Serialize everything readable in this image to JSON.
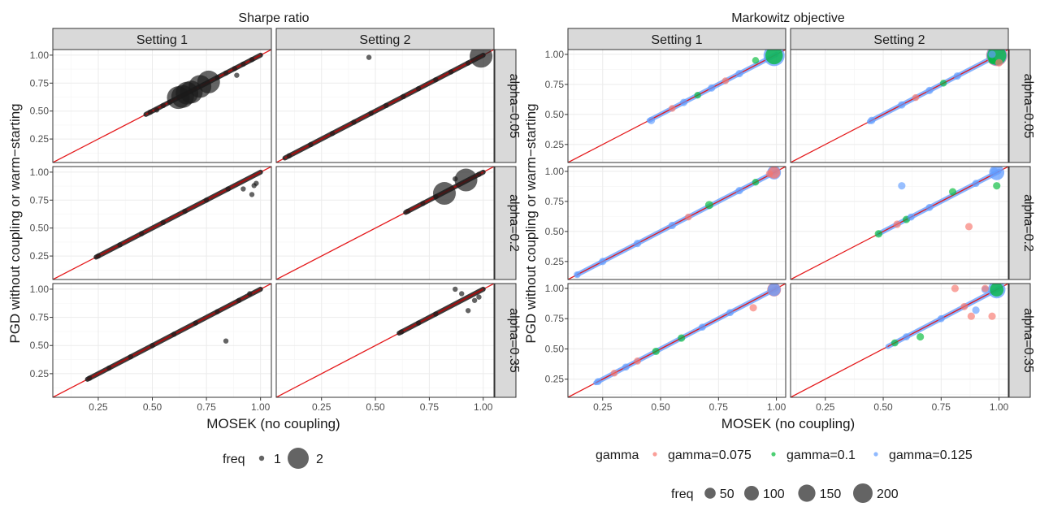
{
  "colors": {
    "diag": "#e41a1c",
    "line": "#a01010",
    "point_black": "#1a1a1a",
    "g0075": "#f8766d",
    "g01": "#00ba38",
    "g0125": "#619cff"
  },
  "chart_data": [
    {
      "type": "scatter",
      "title": "Sharpe ratio",
      "xlabel": "MOSEK (no coupling)",
      "ylabel": "PGD without coupling or warm−starting",
      "xlim": [
        0.04,
        1.05
      ],
      "ylim": [
        0.04,
        1.05
      ],
      "x_ticks": [
        "0.25",
        "0.50",
        "0.75",
        "1.00"
      ],
      "y_ticks": [
        "0.25",
        "0.50",
        "0.75",
        "1.00"
      ],
      "columns": [
        "Setting 1",
        "Setting 2"
      ],
      "rows": [
        "alpha=0.05",
        "alpha=0.2",
        "alpha=0.35"
      ],
      "reference_line": "y = x",
      "legend": {
        "title": "freq",
        "labels": [
          "1",
          "2"
        ]
      },
      "panels": [
        {
          "col": 0,
          "row": 0,
          "line": [
            0.47,
            1.0
          ],
          "points": [
            [
              0.62,
              0.62,
              2
            ],
            [
              0.66,
              0.66,
              2
            ],
            [
              0.68,
              0.67,
              2
            ],
            [
              0.72,
              0.72,
              2
            ],
            [
              0.76,
              0.76,
              2
            ],
            [
              0.64,
              0.63,
              2
            ],
            [
              0.58,
              0.58,
              1
            ],
            [
              0.55,
              0.55,
              1
            ],
            [
              0.52,
              0.51,
              1
            ],
            [
              0.49,
              0.49,
              1
            ],
            [
              0.8,
              0.8,
              1
            ],
            [
              0.84,
              0.84,
              1
            ],
            [
              0.88,
              0.88,
              1
            ],
            [
              0.92,
              0.92,
              1
            ],
            [
              0.96,
              0.96,
              1
            ],
            [
              0.89,
              0.82,
              1
            ]
          ]
        },
        {
          "col": 1,
          "row": 0,
          "line": [
            0.08,
            1.0
          ],
          "points": [
            [
              0.47,
              0.98,
              1
            ],
            [
              0.99,
              0.99,
              2
            ],
            [
              0.1,
              0.1,
              1
            ],
            [
              0.2,
              0.2,
              1
            ],
            [
              0.3,
              0.3,
              1
            ],
            [
              0.4,
              0.4,
              1
            ],
            [
              0.48,
              0.48,
              1
            ],
            [
              0.55,
              0.55,
              1
            ],
            [
              0.63,
              0.63,
              1
            ],
            [
              0.7,
              0.7,
              1
            ],
            [
              0.78,
              0.78,
              1
            ],
            [
              0.85,
              0.85,
              1
            ],
            [
              0.93,
              0.93,
              1
            ]
          ]
        },
        {
          "col": 0,
          "row": 1,
          "line": [
            0.24,
            1.0
          ],
          "points": [
            [
              0.25,
              0.25,
              1
            ],
            [
              0.35,
              0.35,
              1
            ],
            [
              0.45,
              0.45,
              1
            ],
            [
              0.55,
              0.55,
              1
            ],
            [
              0.65,
              0.65,
              1
            ],
            [
              0.75,
              0.75,
              1
            ],
            [
              0.85,
              0.85,
              1
            ],
            [
              0.92,
              0.85,
              1
            ],
            [
              0.96,
              0.8,
              1
            ],
            [
              0.97,
              0.88,
              1
            ],
            [
              0.98,
              0.9,
              1
            ]
          ]
        },
        {
          "col": 1,
          "row": 1,
          "line": [
            0.64,
            1.0
          ],
          "points": [
            [
              0.82,
              0.81,
              2
            ],
            [
              0.92,
              0.93,
              2
            ],
            [
              0.87,
              0.94,
              1
            ],
            [
              0.65,
              0.65,
              1
            ],
            [
              0.72,
              0.72,
              1
            ],
            [
              0.78,
              0.78,
              1
            ],
            [
              0.98,
              0.98,
              1
            ]
          ]
        },
        {
          "col": 0,
          "row": 2,
          "line": [
            0.2,
            1.0
          ],
          "points": [
            [
              0.84,
              0.54,
              1
            ],
            [
              0.95,
              0.96,
              1
            ],
            [
              0.21,
              0.21,
              1
            ],
            [
              0.3,
              0.3,
              1
            ],
            [
              0.4,
              0.4,
              1
            ],
            [
              0.5,
              0.5,
              1
            ],
            [
              0.6,
              0.6,
              1
            ],
            [
              0.7,
              0.7,
              1
            ],
            [
              0.8,
              0.8,
              1
            ],
            [
              0.9,
              0.9,
              1
            ]
          ]
        },
        {
          "col": 1,
          "row": 2,
          "line": [
            0.61,
            1.0
          ],
          "points": [
            [
              0.87,
              1.0,
              1
            ],
            [
              0.9,
              0.96,
              1
            ],
            [
              0.93,
              0.81,
              1
            ],
            [
              0.96,
              0.9,
              1
            ],
            [
              0.98,
              0.93,
              1
            ],
            [
              0.62,
              0.62,
              1
            ],
            [
              0.7,
              0.7,
              1
            ],
            [
              0.78,
              0.78,
              1
            ]
          ]
        }
      ]
    },
    {
      "type": "scatter",
      "title": "Markowitz objective",
      "xlabel": "MOSEK (no coupling)",
      "ylabel": "PGD without coupling or warm−starting",
      "xlim": [
        0.1,
        1.04
      ],
      "ylim": [
        0.1,
        1.04
      ],
      "x_ticks": [
        "0.25",
        "0.50",
        "0.75",
        "1.00"
      ],
      "y_ticks": [
        "0.25",
        "0.50",
        "0.75",
        "1.00"
      ],
      "columns": [
        "Setting 1",
        "Setting 2"
      ],
      "rows": [
        "alpha=0.05",
        "alpha=0.2",
        "alpha=0.35"
      ],
      "reference_line": "y = x",
      "legend_gamma": {
        "title": "gamma",
        "labels": [
          "gamma=0.075",
          "gamma=0.1",
          "gamma=0.125"
        ]
      },
      "legend_freq": {
        "title": "freq",
        "labels": [
          "50",
          "100",
          "150",
          "200"
        ]
      },
      "panels": [
        {
          "col": 0,
          "row": 0,
          "line": [
            0.45,
            1.0
          ],
          "points": [
            [
              0.99,
              0.99,
              2,
              200
            ],
            [
              0.99,
              0.99,
              1,
              120
            ],
            [
              0.91,
              0.95,
              1,
              3
            ],
            [
              0.46,
              0.45,
              2,
              5
            ],
            [
              0.6,
              0.6,
              2,
              5
            ],
            [
              0.72,
              0.72,
              2,
              5
            ],
            [
              0.84,
              0.84,
              2,
              5
            ],
            [
              0.55,
              0.55,
              0,
              3
            ],
            [
              0.78,
              0.78,
              0,
              3
            ],
            [
              0.66,
              0.66,
              1,
              3
            ]
          ]
        },
        {
          "col": 1,
          "row": 0,
          "line": [
            0.44,
            1.0
          ],
          "points": [
            [
              0.99,
              0.99,
              0,
              200
            ],
            [
              0.99,
              0.99,
              2,
              180
            ],
            [
              0.99,
              0.99,
              1,
              150
            ],
            [
              1.0,
              0.93,
              0,
              5
            ],
            [
              0.97,
              0.95,
              1,
              5
            ],
            [
              0.97,
              1.0,
              2,
              5
            ],
            [
              0.45,
              0.45,
              2,
              5
            ],
            [
              0.58,
              0.58,
              2,
              5
            ],
            [
              0.7,
              0.7,
              2,
              5
            ],
            [
              0.82,
              0.82,
              2,
              5
            ],
            [
              0.64,
              0.64,
              0,
              3
            ],
            [
              0.76,
              0.76,
              1,
              3
            ]
          ]
        },
        {
          "col": 0,
          "row": 1,
          "line": [
            0.14,
            1.0
          ],
          "points": [
            [
              0.99,
              0.99,
              2,
              60
            ],
            [
              0.99,
              0.99,
              0,
              40
            ],
            [
              0.97,
              0.98,
              0,
              4
            ],
            [
              0.14,
              0.14,
              2,
              3
            ],
            [
              0.25,
              0.25,
              2,
              5
            ],
            [
              0.4,
              0.4,
              2,
              5
            ],
            [
              0.55,
              0.55,
              2,
              5
            ],
            [
              0.71,
              0.72,
              1,
              8
            ],
            [
              0.84,
              0.84,
              2,
              5
            ],
            [
              0.62,
              0.62,
              0,
              3
            ],
            [
              0.91,
              0.91,
              1,
              3
            ]
          ]
        },
        {
          "col": 1,
          "row": 1,
          "line": [
            0.48,
            1.0
          ],
          "points": [
            [
              0.99,
              0.99,
              2,
              80
            ],
            [
              0.58,
              0.88,
              2,
              5
            ],
            [
              0.87,
              0.54,
              0,
              5
            ],
            [
              0.99,
              0.88,
              1,
              5
            ],
            [
              0.98,
              1.0,
              2,
              5
            ],
            [
              0.48,
              0.48,
              1,
              6
            ],
            [
              0.56,
              0.56,
              0,
              5
            ],
            [
              0.6,
              0.6,
              1,
              5
            ],
            [
              0.8,
              0.83,
              1,
              5
            ],
            [
              0.7,
              0.7,
              2,
              4
            ],
            [
              0.9,
              0.9,
              2,
              4
            ],
            [
              0.62,
              0.62,
              2,
              4
            ]
          ]
        },
        {
          "col": 0,
          "row": 2,
          "line": [
            0.22,
            1.0
          ],
          "points": [
            [
              0.99,
              0.99,
              0,
              60
            ],
            [
              0.99,
              0.99,
              2,
              50
            ],
            [
              0.9,
              0.84,
              0,
              5
            ],
            [
              0.23,
              0.23,
              2,
              4
            ],
            [
              0.35,
              0.35,
              2,
              4
            ],
            [
              0.48,
              0.48,
              1,
              5
            ],
            [
              0.59,
              0.59,
              1,
              5
            ],
            [
              0.68,
              0.68,
              2,
              4
            ],
            [
              0.8,
              0.8,
              2,
              4
            ],
            [
              0.4,
              0.4,
              0,
              4
            ],
            [
              0.3,
              0.3,
              0,
              3
            ]
          ]
        },
        {
          "col": 1,
          "row": 2,
          "line": [
            0.52,
            1.0
          ],
          "points": [
            [
              0.99,
              0.99,
              2,
              120
            ],
            [
              0.99,
              0.99,
              1,
              60
            ],
            [
              0.81,
              1.0,
              0,
              5
            ],
            [
              0.88,
              0.77,
              0,
              5
            ],
            [
              0.9,
              0.82,
              2,
              5
            ],
            [
              0.94,
              0.99,
              2,
              5
            ],
            [
              0.66,
              0.6,
              1,
              5
            ],
            [
              0.97,
              0.77,
              0,
              5
            ],
            [
              0.94,
              1.0,
              0,
              4
            ],
            [
              0.55,
              0.55,
              1,
              4
            ],
            [
              0.6,
              0.6,
              2,
              4
            ],
            [
              0.75,
              0.75,
              2,
              4
            ],
            [
              0.85,
              0.85,
              0,
              4
            ]
          ]
        }
      ]
    }
  ]
}
